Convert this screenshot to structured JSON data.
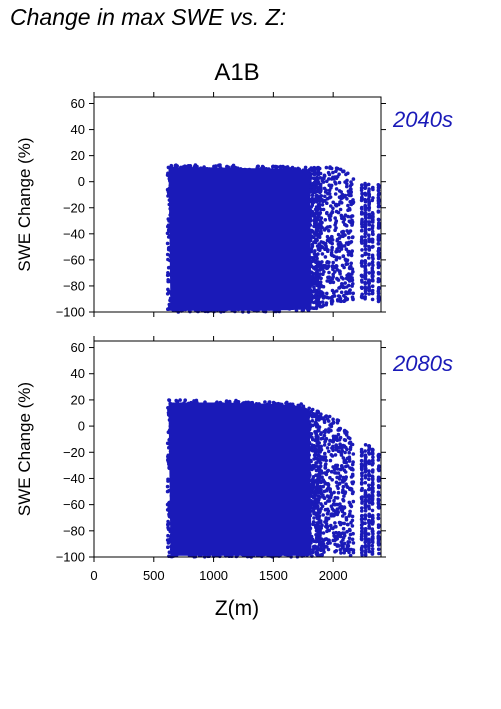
{
  "title": "Change in max SWE vs. Z:",
  "colors": {
    "points": "#1a1ab8",
    "period_label": "#1a1ab8"
  },
  "chart_data": {
    "type": "scatter",
    "scenario": "A1B",
    "xlabel": "Z(m)",
    "xlim": [
      0,
      2400
    ],
    "xticks": [
      0,
      500,
      1000,
      1500,
      2000
    ],
    "panels": [
      {
        "period": "2040s",
        "ylabel": "SWE Change (%)",
        "ylim": [
          -100,
          65
        ],
        "yticks": [
          60,
          40,
          20,
          0,
          -20,
          -40,
          -60,
          -80,
          -100
        ],
        "x_range": [
          615,
          2400
        ],
        "max_change_envelope": [
          [
            615,
            13
          ],
          [
            1000,
            13
          ],
          [
            1500,
            12
          ],
          [
            1800,
            11
          ],
          [
            1950,
            11
          ],
          [
            2050,
            12
          ],
          [
            2150,
            5
          ],
          [
            2300,
            -2
          ],
          [
            2400,
            -2
          ]
        ],
        "min_change_envelope": [
          [
            615,
            -100
          ],
          [
            1000,
            -100
          ],
          [
            1500,
            -100
          ],
          [
            1800,
            -99
          ],
          [
            1900,
            -96
          ],
          [
            2000,
            -94
          ],
          [
            2100,
            -92
          ],
          [
            2200,
            -91
          ],
          [
            2300,
            -90
          ],
          [
            2400,
            -93
          ]
        ]
      },
      {
        "period": "2080s",
        "ylabel": "SWE Change (%)",
        "ylim": [
          -100,
          65
        ],
        "yticks": [
          60,
          40,
          20,
          0,
          -20,
          -40,
          -60,
          -80,
          -100
        ],
        "x_range": [
          615,
          2400
        ],
        "max_change_envelope": [
          [
            615,
            20
          ],
          [
            1000,
            20
          ],
          [
            1500,
            19
          ],
          [
            1750,
            17
          ],
          [
            1900,
            10
          ],
          [
            2050,
            5
          ],
          [
            2150,
            -10
          ],
          [
            2300,
            -15
          ],
          [
            2400,
            -20
          ]
        ],
        "min_change_envelope": [
          [
            615,
            -100
          ],
          [
            1000,
            -100
          ],
          [
            1500,
            -100
          ],
          [
            1850,
            -100
          ],
          [
            1950,
            -98
          ],
          [
            2000,
            -96
          ],
          [
            2100,
            -99
          ],
          [
            2200,
            -99
          ],
          [
            2300,
            -99
          ],
          [
            2400,
            -99
          ]
        ]
      }
    ]
  }
}
